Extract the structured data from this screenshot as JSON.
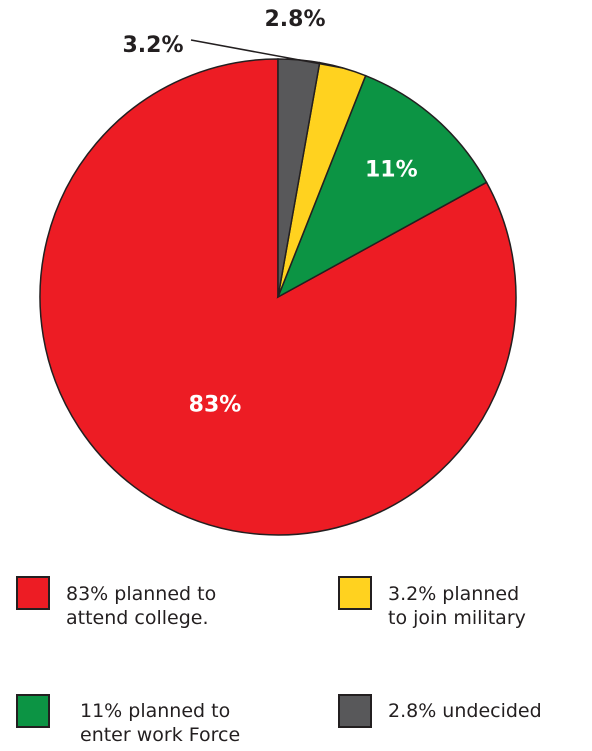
{
  "chart_data": {
    "type": "pie",
    "slices": [
      {
        "label": "83% planned to attend college.",
        "value": 83,
        "data_label": "83%",
        "color": "#ed1c24",
        "text_color": "#ffffff"
      },
      {
        "label": "11% planned to enter work Force",
        "value": 11,
        "data_label": "11%",
        "color": "#0c9444",
        "text_color": "#ffffff"
      },
      {
        "label": "3.2% planned to join military",
        "value": 3.2,
        "data_label": "3.2%",
        "color": "#ffd21f",
        "text_color": "#231f20"
      },
      {
        "label": "2.8% undecided",
        "value": 2.8,
        "data_label": "2.8%",
        "color": "#58585a",
        "text_color": "#231f20"
      }
    ],
    "legend_placement": "bottom",
    "title": ""
  },
  "legend": [
    {
      "text": "83% planned to\nattend college.",
      "color": "#ed1c24"
    },
    {
      "text": "3.2% planned\nto join military",
      "color": "#ffd21f"
    },
    {
      "text": "11% planned to\nenter work Force",
      "color": "#0c9444"
    },
    {
      "text": "2.8% undecided",
      "color": "#58585a"
    }
  ]
}
